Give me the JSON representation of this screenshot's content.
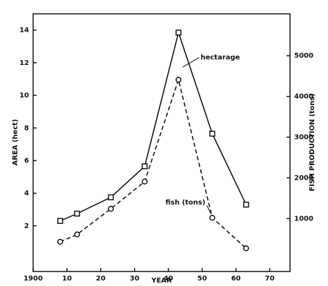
{
  "chart_data": {
    "type": "line",
    "x_label": "YEAR",
    "y_label": "AREA (hect)",
    "y2_label": "FISH PRODUCTION (tons)",
    "x": [
      1908,
      1913,
      1923,
      1933,
      1943,
      1953,
      1963
    ],
    "xlim": [
      1900,
      1976
    ],
    "xticks": [
      {
        "value": 1900,
        "label": "1900"
      },
      {
        "value": 1910,
        "label": "10"
      },
      {
        "value": 1920,
        "label": "20"
      },
      {
        "value": 1930,
        "label": "30"
      },
      {
        "value": 1940,
        "label": "40"
      },
      {
        "value": 1950,
        "label": "50"
      },
      {
        "value": 1960,
        "label": "60"
      },
      {
        "value": 1970,
        "label": "70"
      }
    ],
    "ylim": [
      -0.8,
      15
    ],
    "yticks": [
      2,
      4,
      6,
      8,
      10,
      12,
      14
    ],
    "y2lim": [
      -300,
      6030
    ],
    "y2ticks": [
      1000,
      2000,
      3000,
      4000,
      5000
    ],
    "series": [
      {
        "name": "hectarage",
        "color": "#111111",
        "values": [
          2.3,
          2.75,
          3.75,
          5.65,
          13.85,
          7.65,
          3.3
        ]
      },
      {
        "name": "fish (tons)",
        "color": "#111111",
        "axis": "y2",
        "values": [
          430,
          610,
          1240,
          1910,
          4410,
          1020,
          270
        ]
      }
    ]
  }
}
